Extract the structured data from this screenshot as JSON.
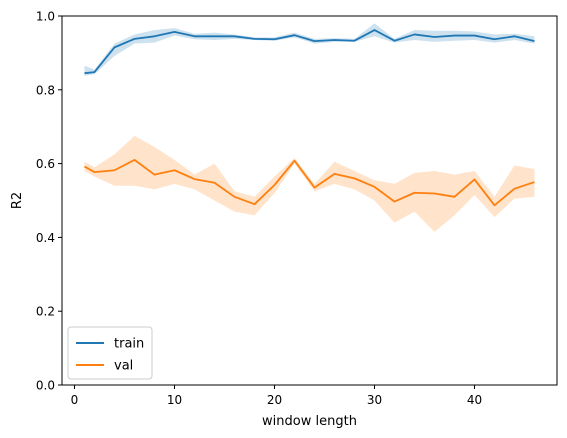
{
  "chart_data": {
    "type": "line",
    "title": "",
    "xlabel": "window length",
    "ylabel": "R2",
    "xlim": [
      -1.25,
      48.25
    ],
    "ylim": [
      0.0,
      1.0
    ],
    "x_ticks": [
      0,
      10,
      20,
      30,
      40
    ],
    "y_ticks": [
      0.0,
      0.2,
      0.4,
      0.6,
      0.8,
      1.0
    ],
    "y_tick_labels": [
      "0.0",
      "0.2",
      "0.4",
      "0.6",
      "0.8",
      "1.0"
    ],
    "grid": false,
    "legend_position": "lower-left",
    "x": [
      1,
      2,
      4,
      6,
      8,
      10,
      12,
      14,
      16,
      18,
      20,
      22,
      24,
      26,
      28,
      30,
      32,
      34,
      36,
      38,
      40,
      42,
      44,
      46
    ],
    "series": [
      {
        "name": "train",
        "color": "#1f77b4",
        "values": [
          0.845,
          0.848,
          0.915,
          0.938,
          0.945,
          0.957,
          0.945,
          0.945,
          0.945,
          0.938,
          0.937,
          0.948,
          0.932,
          0.935,
          0.933,
          0.962,
          0.933,
          0.95,
          0.943,
          0.947,
          0.947,
          0.937,
          0.945,
          0.932
        ],
        "ci_low": [
          0.838,
          0.842,
          0.892,
          0.925,
          0.928,
          0.947,
          0.937,
          0.935,
          0.938,
          0.935,
          0.933,
          0.942,
          0.925,
          0.93,
          0.93,
          0.945,
          0.928,
          0.935,
          0.93,
          0.933,
          0.935,
          0.928,
          0.935,
          0.925
        ],
        "ci_high": [
          0.865,
          0.855,
          0.925,
          0.95,
          0.962,
          0.967,
          0.952,
          0.955,
          0.95,
          0.942,
          0.942,
          0.955,
          0.938,
          0.94,
          0.938,
          0.98,
          0.938,
          0.962,
          0.96,
          0.96,
          0.958,
          0.95,
          0.952,
          0.945
        ]
      },
      {
        "name": "val",
        "color": "#ff7f0e",
        "values": [
          0.592,
          0.577,
          0.582,
          0.61,
          0.57,
          0.582,
          0.558,
          0.548,
          0.51,
          0.49,
          0.542,
          0.608,
          0.535,
          0.572,
          0.56,
          0.537,
          0.497,
          0.521,
          0.519,
          0.51,
          0.557,
          0.487,
          0.532,
          0.55
        ],
        "ci_low": [
          0.58,
          0.565,
          0.54,
          0.54,
          0.53,
          0.545,
          0.53,
          0.5,
          0.47,
          0.46,
          0.52,
          0.6,
          0.525,
          0.545,
          0.53,
          0.5,
          0.44,
          0.47,
          0.415,
          0.46,
          0.515,
          0.455,
          0.505,
          0.51
        ],
        "ci_high": [
          0.605,
          0.59,
          0.625,
          0.675,
          0.645,
          0.61,
          0.57,
          0.6,
          0.525,
          0.51,
          0.565,
          0.615,
          0.545,
          0.605,
          0.58,
          0.555,
          0.545,
          0.575,
          0.58,
          0.57,
          0.58,
          0.51,
          0.595,
          0.585
        ]
      }
    ]
  }
}
